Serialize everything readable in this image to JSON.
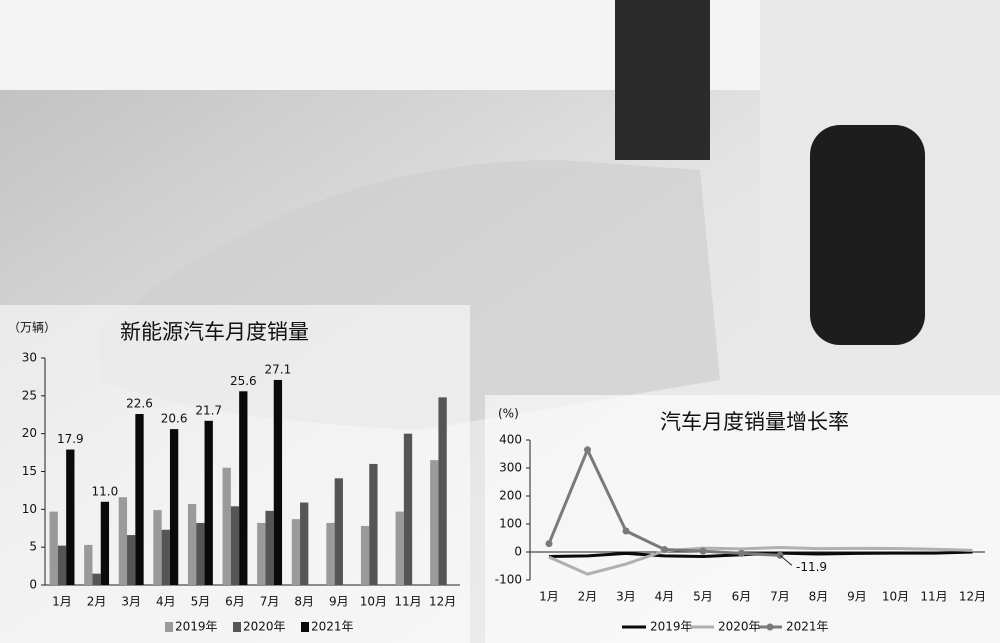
{
  "chart_data": [
    {
      "type": "bar",
      "title": "新能源汽车月度销量",
      "y_label": "（万辆）",
      "categories": [
        "1月",
        "2月",
        "3月",
        "4月",
        "5月",
        "6月",
        "7月",
        "8月",
        "9月",
        "10月",
        "11月",
        "12月"
      ],
      "series": [
        {
          "name": "2019年",
          "color": "#9a9a9a",
          "values": [
            9.7,
            5.3,
            11.6,
            9.9,
            10.7,
            15.5,
            8.2,
            8.7,
            8.2,
            7.8,
            9.7,
            16.5
          ]
        },
        {
          "name": "2020年",
          "color": "#555555",
          "values": [
            5.2,
            1.5,
            6.6,
            7.3,
            8.2,
            10.4,
            9.8,
            10.9,
            14.1,
            16.0,
            20.0,
            24.8
          ]
        },
        {
          "name": "2021年",
          "color": "#0a0a0a",
          "values": [
            17.9,
            11.0,
            22.6,
            20.6,
            21.7,
            25.6,
            27.1,
            null,
            null,
            null,
            null,
            null
          ],
          "value_labels": [
            "17.9",
            "11.0",
            "22.6",
            "20.6",
            "21.7",
            "25.6",
            "27.1",
            null,
            null,
            null,
            null,
            null
          ]
        }
      ],
      "ylim": [
        0,
        30
      ],
      "yticks": [
        0,
        5,
        10,
        15,
        20,
        25,
        30
      ],
      "legend": "bottom"
    },
    {
      "type": "line",
      "title": "汽车月度销量增长率",
      "y_label": "(%)",
      "categories": [
        "1月",
        "2月",
        "3月",
        "4月",
        "5月",
        "6月",
        "7月",
        "8月",
        "9月",
        "10月",
        "11月",
        "12月"
      ],
      "series": [
        {
          "name": "2019年",
          "color": "#0a0a0a",
          "values": [
            -16,
            -14,
            -5,
            -14,
            -16,
            -10,
            -4,
            -7,
            -5,
            -4,
            -4,
            0
          ]
        },
        {
          "name": "2020年",
          "color": "#b0b0b0",
          "values": [
            -18,
            -79,
            -43,
            4,
            14,
            11,
            16,
            12,
            13,
            12.5,
            10,
            6
          ]
        },
        {
          "name": "2021年",
          "color": "#7a7a7a",
          "markers": true,
          "values": [
            30,
            365,
            75,
            9,
            3,
            -5,
            -11.9,
            null,
            null,
            null,
            null,
            null
          ]
        }
      ],
      "annotated_point": 6,
      "ylim": [
        -100,
        400
      ],
      "yticks": [
        -100,
        0,
        100,
        200,
        300,
        400
      ],
      "legend": "bottom"
    }
  ]
}
